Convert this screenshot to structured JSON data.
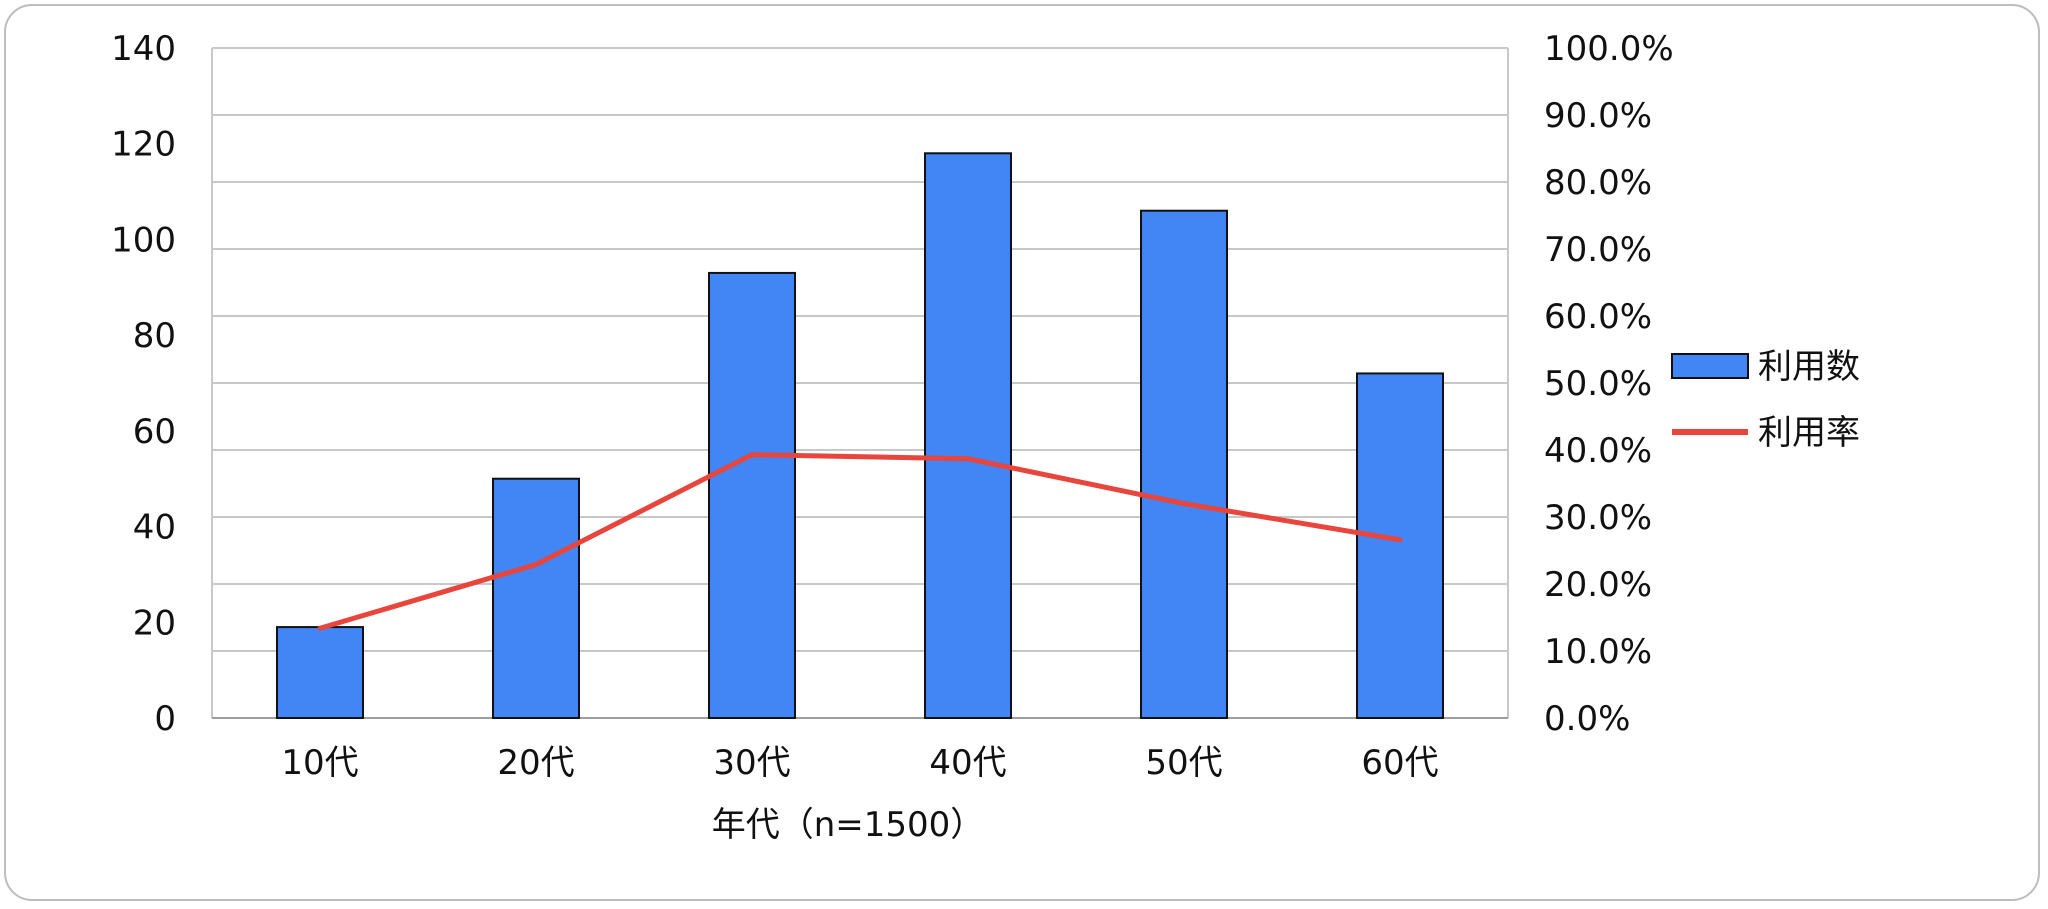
{
  "chart_data": {
    "type": "bar",
    "categories": [
      "10代",
      "20代",
      "30代",
      "40代",
      "50代",
      "60代"
    ],
    "series": [
      {
        "name": "利用数",
        "type": "bar",
        "axis": "left",
        "color": "#4285F4",
        "values": [
          19,
          50,
          93,
          118,
          106,
          72
        ]
      },
      {
        "name": "利用率",
        "type": "line",
        "axis": "right",
        "color": "#E8453C",
        "values": [
          13.4,
          22.9,
          39.3,
          38.7,
          32.0,
          26.6
        ]
      }
    ],
    "xlabel": "年代（n=1500）",
    "ylabel": "",
    "y2label": "",
    "ylim": [
      0,
      140
    ],
    "y2lim": [
      0,
      100
    ],
    "y_ticks": [
      "0",
      "20",
      "40",
      "60",
      "80",
      "100",
      "120",
      "140"
    ],
    "y2_ticks": [
      "0.0%",
      "10.0%",
      "20.0%",
      "30.0%",
      "40.0%",
      "50.0%",
      "60.0%",
      "70.0%",
      "80.0%",
      "90.0%",
      "100.0%"
    ],
    "grid": true,
    "legend_position": "right"
  }
}
